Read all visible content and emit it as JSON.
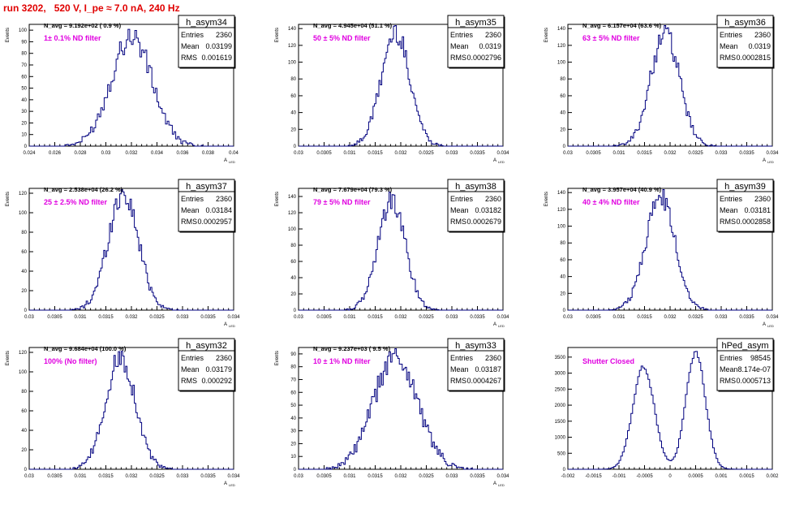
{
  "page": {
    "title": "run 3202,   520 V, I_pe ≈ 7.0 nA, 240 Hz"
  },
  "colors": {
    "title": "#e00000",
    "histogram": "#00007f",
    "annotation": "#e000e0",
    "axis": "#000000"
  },
  "chart_data": [
    {
      "type": "histogram",
      "name": "h_asym34",
      "stats": {
        "entries_label": "Entries",
        "entries": "2360",
        "mean_label": "Mean",
        "mean": "0.03199",
        "rms_label": "RMS",
        "rms": "0.001619"
      },
      "navg": "N_avg = 9.192e+02 ( 0.9 %)",
      "filter": "1± 0.1% ND filter",
      "ylabel": "Events",
      "xlabel": "A",
      "xlabel_sub": "LED",
      "xlim": [
        0.024,
        0.04
      ],
      "ylim": [
        0,
        105
      ],
      "xticks": [
        "0.024",
        "0.026",
        "0.028",
        "0.03",
        "0.032",
        "0.034",
        "0.036",
        "0.038",
        "0.04"
      ],
      "yticks": [
        "0",
        "10",
        "20",
        "30",
        "40",
        "50",
        "60",
        "70",
        "80",
        "90",
        "100"
      ],
      "gauss": [
        {
          "amp": 95,
          "mu": 0.032,
          "sigma": 0.0016
        }
      ],
      "bins": 120
    },
    {
      "type": "histogram",
      "name": "h_asym35",
      "stats": {
        "entries_label": "Entries",
        "entries": "2360",
        "mean_label": "Mean",
        "mean": "0.0319",
        "rms_label": "RMS",
        "rms": "0.0002796"
      },
      "navg": "N_avg = 4.945e+04 (51.1 %)",
      "filter": "50 ± 5% ND filter",
      "ylabel": "Events",
      "xlabel": "A",
      "xlabel_sub": "LED",
      "xlim": [
        0.03,
        0.034
      ],
      "ylim": [
        0,
        145
      ],
      "xticks": [
        "0.03",
        "0.0305",
        "0.031",
        "0.0315",
        "0.032",
        "0.0325",
        "0.033",
        "0.0335",
        "0.034"
      ],
      "yticks": [
        "0",
        "20",
        "40",
        "60",
        "80",
        "100",
        "120",
        "140"
      ],
      "gauss": [
        {
          "amp": 135,
          "mu": 0.0319,
          "sigma": 0.00028
        }
      ],
      "bins": 140
    },
    {
      "type": "histogram",
      "name": "h_asym36",
      "stats": {
        "entries_label": "Entries",
        "entries": "2360",
        "mean_label": "Mean",
        "mean": "0.0319",
        "rms_label": "RMS",
        "rms": "0.0002815"
      },
      "navg": "N_avg = 6.157e+04 (63.6 %)",
      "filter": "63 ± 5% ND filter",
      "ylabel": "Events",
      "xlabel": "A",
      "xlabel_sub": "LED",
      "xlim": [
        0.03,
        0.034
      ],
      "ylim": [
        0,
        145
      ],
      "xticks": [
        "0.03",
        "0.0305",
        "0.031",
        "0.0315",
        "0.032",
        "0.0325",
        "0.033",
        "0.0335",
        "0.034"
      ],
      "yticks": [
        "0",
        "20",
        "40",
        "60",
        "80",
        "100",
        "120",
        "140"
      ],
      "gauss": [
        {
          "amp": 135,
          "mu": 0.0319,
          "sigma": 0.00028
        }
      ],
      "bins": 140
    },
    {
      "type": "histogram",
      "name": "h_asym37",
      "stats": {
        "entries_label": "Entries",
        "entries": "2360",
        "mean_label": "Mean",
        "mean": "0.03184",
        "rms_label": "RMS",
        "rms": "0.0002957"
      },
      "navg": "N_avg = 2.538e+04 (26.2 %)",
      "filter": "25 ± 2.5% ND filter",
      "ylabel": "Events",
      "xlabel": "A",
      "xlabel_sub": "LED",
      "xlim": [
        0.03,
        0.034
      ],
      "ylim": [
        0,
        125
      ],
      "xticks": [
        "0.03",
        "0.0305",
        "0.031",
        "0.0315",
        "0.032",
        "0.0325",
        "0.033",
        "0.0335",
        "0.034"
      ],
      "yticks": [
        "0",
        "20",
        "40",
        "60",
        "80",
        "100",
        "120"
      ],
      "gauss": [
        {
          "amp": 120,
          "mu": 0.03184,
          "sigma": 0.000296
        }
      ],
      "bins": 140
    },
    {
      "type": "histogram",
      "name": "h_asym38",
      "stats": {
        "entries_label": "Entries",
        "entries": "2360",
        "mean_label": "Mean",
        "mean": "0.03182",
        "rms_label": "RMS",
        "rms": "0.0002679"
      },
      "navg": "N_avg = 7.679e+04 (79.3 %)",
      "filter": "79 ± 5% ND filter",
      "ylabel": "Events",
      "xlabel": "A",
      "xlabel_sub": "LED",
      "xlim": [
        0.03,
        0.034
      ],
      "ylim": [
        0,
        150
      ],
      "xticks": [
        "0.03",
        "0.0305",
        "0.031",
        "0.0315",
        "0.032",
        "0.0325",
        "0.033",
        "0.0335",
        "0.034"
      ],
      "yticks": [
        "0",
        "20",
        "40",
        "60",
        "80",
        "100",
        "120",
        "140"
      ],
      "gauss": [
        {
          "amp": 135,
          "mu": 0.03182,
          "sigma": 0.000268
        }
      ],
      "bins": 140
    },
    {
      "type": "histogram",
      "name": "h_asym39",
      "stats": {
        "entries_label": "Entries",
        "entries": "2360",
        "mean_label": "Mean",
        "mean": "0.03181",
        "rms_label": "RMS",
        "rms": "0.0002858"
      },
      "navg": "N_avg = 3.957e+04 (40.9 %)",
      "filter": "40 ± 4% ND filter",
      "ylabel": "Events",
      "xlabel": "A",
      "xlabel_sub": "LED",
      "xlim": [
        0.03,
        0.034
      ],
      "ylim": [
        0,
        145
      ],
      "xticks": [
        "0.03",
        "0.0305",
        "0.031",
        "0.0315",
        "0.032",
        "0.0325",
        "0.033",
        "0.0335",
        "0.034"
      ],
      "yticks": [
        "0",
        "20",
        "40",
        "60",
        "80",
        "100",
        "120",
        "140"
      ],
      "gauss": [
        {
          "amp": 135,
          "mu": 0.03181,
          "sigma": 0.000286
        }
      ],
      "bins": 140
    },
    {
      "type": "histogram",
      "name": "h_asym32",
      "stats": {
        "entries_label": "Entries",
        "entries": "2360",
        "mean_label": "Mean",
        "mean": "0.03179",
        "rms_label": "RMS",
        "rms": "0.000292"
      },
      "navg": "N_avg = 9.684e+04 (100.0 %)",
      "filter": "100% (No filter)",
      "ylabel": "Events",
      "xlabel": "A",
      "xlabel_sub": "LED",
      "xlim": [
        0.03,
        0.034
      ],
      "ylim": [
        0,
        125
      ],
      "xticks": [
        "0.03",
        "0.0305",
        "0.031",
        "0.0315",
        "0.032",
        "0.0325",
        "0.033",
        "0.0335",
        "0.034"
      ],
      "yticks": [
        "0",
        "20",
        "40",
        "60",
        "80",
        "100",
        "120"
      ],
      "gauss": [
        {
          "amp": 115,
          "mu": 0.03179,
          "sigma": 0.000292
        }
      ],
      "bins": 140
    },
    {
      "type": "histogram",
      "name": "h_asym33",
      "stats": {
        "entries_label": "Entries",
        "entries": "2360",
        "mean_label": "Mean",
        "mean": "0.03187",
        "rms_label": "RMS",
        "rms": "0.0004267"
      },
      "navg": "N_avg = 9.237e+03 ( 9.5 %)",
      "filter": "10 ± 1% ND filter",
      "ylabel": "Events",
      "xlabel": "A",
      "xlabel_sub": "LED",
      "xlim": [
        0.03,
        0.034
      ],
      "ylim": [
        0,
        95
      ],
      "xticks": [
        "0.03",
        "0.0305",
        "0.031",
        "0.0315",
        "0.032",
        "0.0325",
        "0.033",
        "0.0335",
        "0.034"
      ],
      "yticks": [
        "0",
        "10",
        "20",
        "30",
        "40",
        "50",
        "60",
        "70",
        "80",
        "90"
      ],
      "gauss": [
        {
          "amp": 88,
          "mu": 0.0319,
          "sigma": 0.00043
        }
      ],
      "bins": 140
    },
    {
      "type": "histogram",
      "name": "hPed_asym",
      "stats": {
        "entries_label": "Entries",
        "entries": "98545",
        "mean_label": "Mean",
        "mean": "8.174e-07",
        "rms_label": "RMS",
        "rms": "0.0005713"
      },
      "navg": "",
      "filter": "Shutter Closed",
      "ylabel": "",
      "xlabel": "",
      "xlabel_sub": "",
      "xlim": [
        -0.002,
        0.002
      ],
      "ylim": [
        0,
        3800
      ],
      "xticks": [
        "-0.002",
        "-0.0015",
        "-0.001",
        "-0.0005",
        "0",
        "0.0005",
        "0.001",
        "0.0015",
        "0.002"
      ],
      "yticks": [
        "0",
        "500",
        "1000",
        "1500",
        "2000",
        "2500",
        "3000",
        "3500"
      ],
      "gauss": [
        {
          "amp": 3200,
          "mu": -0.00052,
          "sigma": 0.00021
        },
        {
          "amp": 3650,
          "mu": 0.0005,
          "sigma": 0.00019
        }
      ],
      "bins": 120
    }
  ]
}
